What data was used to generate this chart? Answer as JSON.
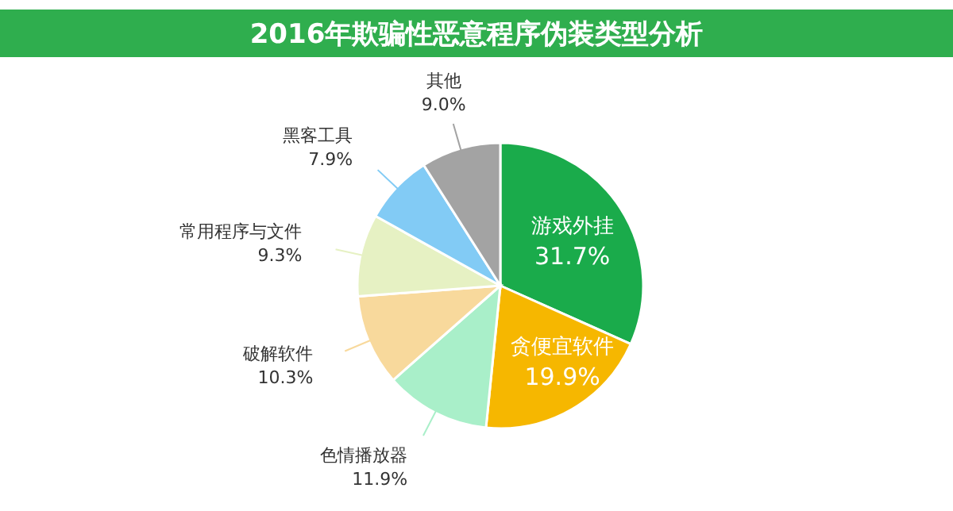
{
  "chart_data": {
    "type": "pie",
    "title": "2016年欺骗性恶意程序伪装类型分析",
    "categories": [
      "游戏外挂",
      "贪便宜软件",
      "色情播放器",
      "破解软件",
      "常用程序与文件",
      "黑客工具",
      "其他"
    ],
    "values": [
      31.7,
      19.9,
      11.9,
      10.3,
      9.3,
      7.9,
      9.0
    ],
    "colors": [
      "#1aab4b",
      "#f6b700",
      "#a9efc9",
      "#f8d99c",
      "#e6f1c3",
      "#82cbf5",
      "#a3a3a3"
    ],
    "value_labels": [
      "31.7%",
      "19.9%",
      "11.9%",
      "10.3%",
      "9.3%",
      "7.9%",
      "9.0%"
    ]
  }
}
